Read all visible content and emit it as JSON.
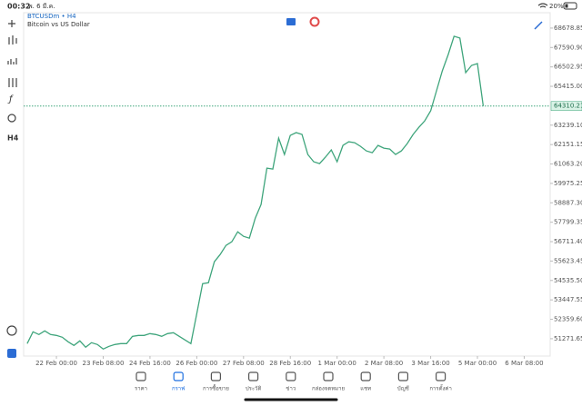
{
  "status_bar": {
    "time": "00:32",
    "date": "พ. 6 มี.ค.",
    "battery": "20%"
  },
  "left_toolbar": {
    "timeframe": "H4"
  },
  "chart_data": {
    "type": "line",
    "title": "BTCUSDm • H4",
    "subtitle": "Bitcoin vs US Dollar",
    "categories": [
      null,
      null,
      null,
      null,
      null,
      "22 Feb 00:00",
      null,
      null,
      null,
      null,
      null,
      null,
      null,
      "23 Feb 08:00",
      null,
      null,
      null,
      null,
      null,
      null,
      null,
      "24 Feb 16:00",
      null,
      null,
      null,
      null,
      null,
      null,
      null,
      "26 Feb 00:00",
      null,
      null,
      null,
      null,
      null,
      null,
      null,
      "27 Feb 08:00",
      null,
      null,
      null,
      null,
      null,
      null,
      null,
      "28 Feb 16:00",
      null,
      null,
      null,
      null,
      null,
      null,
      null,
      "1 Mar 00:00",
      null,
      null,
      null,
      null,
      null,
      null,
      null,
      "2 Mar 08:00",
      null,
      null,
      null,
      null,
      null,
      null,
      null,
      "3 Mar 16:00",
      null,
      null,
      null,
      null,
      null,
      null,
      null,
      "5 Mar 00:00",
      null,
      null,
      null,
      null,
      null,
      null,
      null,
      "6 Mar 08:00"
    ],
    "series": [
      {
        "name": "BTCUSDm",
        "color": "#3fa57c",
        "values": [
          50996,
          51658,
          51505,
          51709,
          51505,
          51455,
          51353,
          51098,
          50894,
          51149,
          50792,
          51047,
          50945,
          50690,
          50843,
          50945,
          50996,
          50996,
          51404,
          51455,
          51455,
          51556,
          51505,
          51404,
          51556,
          51607,
          51404,
          51200,
          50996,
          52678,
          54359,
          54410,
          55582,
          55990,
          56500,
          56703,
          57264,
          57009,
          56907,
          58028,
          58793,
          60831,
          60780,
          62513,
          61596,
          62666,
          62819,
          62717,
          61596,
          61188,
          61086,
          61443,
          61850,
          61188,
          62105,
          62309,
          62258,
          62054,
          61799,
          61697,
          62105,
          61952,
          61901,
          61596,
          61799,
          62207,
          62717,
          63124,
          63481,
          64042,
          65163,
          66284,
          67201,
          68220,
          68118,
          66182,
          66590,
          66692,
          64310.21,
          null,
          null,
          null,
          null,
          null,
          null,
          null
        ]
      }
    ],
    "last_price": 64310.21,
    "ylim": [
      50300,
      69540
    ],
    "yticks": [
      51271.65,
      {
        "value": 52359.6,
        "label": "52359.60"
      },
      53447.55,
      {
        "value": 54535.5,
        "label": "54535.50"
      },
      55623.45,
      {
        "value": 56711.4,
        "label": "56711.40"
      },
      57799.35,
      {
        "value": 58887.3,
        "label": "58887.30"
      },
      59975.25,
      {
        "value": 61063.2,
        "label": "61063.20"
      },
      62151.15,
      {
        "value": 63239.1,
        "label": "63239.10"
      },
      {
        "value": 65415,
        "label": "65415.00"
      },
      66502.95,
      {
        "value": 67590.9,
        "label": "67590.90"
      },
      68678.85
    ]
  },
  "tab_bar": {
    "tabs": [
      "ราคา",
      "กราฟ",
      "การซื้อขาย",
      "ประวัติ",
      "ข่าว",
      "กล่องจดหมาย",
      "แชท",
      "บัญชี",
      "การตั้งค่า"
    ],
    "active": 1
  }
}
